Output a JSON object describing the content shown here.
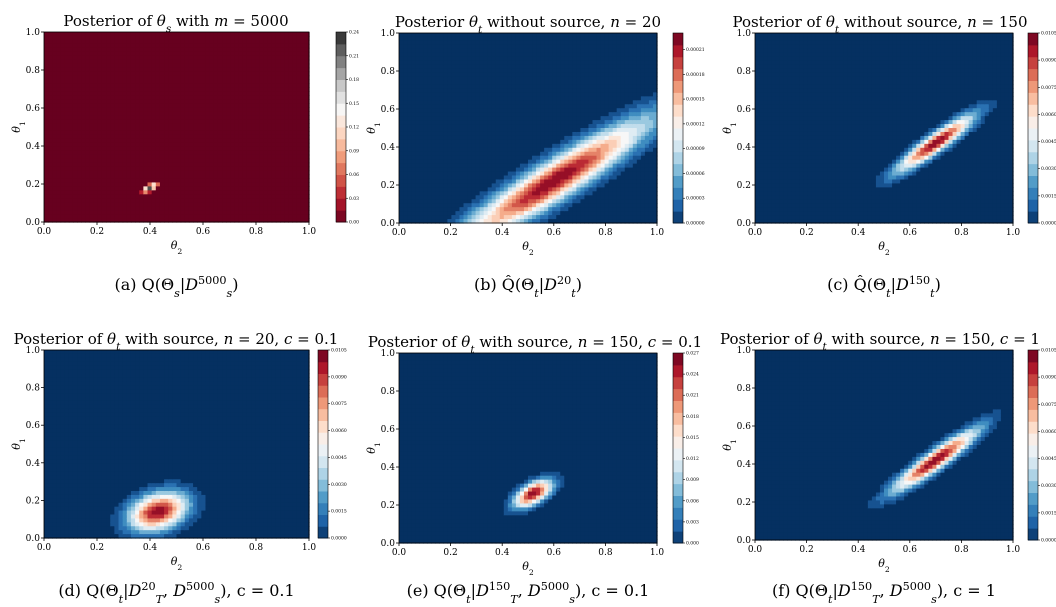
{
  "chart_data": [
    {
      "type": "heatmap",
      "title": "Posterior of θs with m = 5000",
      "xlabel": "θ2",
      "ylabel": "θ1",
      "xlim": [
        0,
        1
      ],
      "ylim": [
        0,
        1
      ],
      "xticks": [
        "0.0",
        "0.2",
        "0.4",
        "0.6",
        "0.8",
        "1.0"
      ],
      "yticks": [
        "0.0",
        "0.2",
        "0.4",
        "0.6",
        "0.8",
        "1.0"
      ],
      "colorbar_ticks": [
        "0.00",
        "0.03",
        "0.06",
        "0.09",
        "0.12",
        "0.15",
        "0.18",
        "0.21",
        "0.24"
      ],
      "colorbar_max": 0.24,
      "colormap": "reversed RdBu with dark gray top",
      "peak": {
        "theta2": 0.4,
        "theta1": 0.18,
        "sd2": 0.018,
        "sd1": 0.016,
        "corr": 0.7
      },
      "caption": "(a) Q(Θs|D_s^5000)"
    },
    {
      "type": "heatmap",
      "title": "Posterior θt without source, n = 20",
      "xlabel": "θ2",
      "ylabel": "θ1",
      "xlim": [
        0,
        1
      ],
      "ylim": [
        0,
        1
      ],
      "xticks": [
        "0.0",
        "0.2",
        "0.4",
        "0.6",
        "0.8",
        "1.0"
      ],
      "yticks": [
        "0.0",
        "0.2",
        "0.4",
        "0.6",
        "0.8",
        "1.0"
      ],
      "colorbar_ticks": [
        "0.00000",
        "0.00003",
        "0.00006",
        "0.00009",
        "0.00012",
        "0.00015",
        "0.00018",
        "0.00021"
      ],
      "colorbar_max": 0.00023,
      "colormap": "RdBu reversed",
      "peak": {
        "theta2": 0.6,
        "theta1": 0.22,
        "sd2": 0.25,
        "sd1": 0.22,
        "corr": 0.93
      },
      "caption": "(b) Q̂(Θt|D_t^20)"
    },
    {
      "type": "heatmap",
      "title": "Posterior of θt without source, n = 150",
      "xlabel": "θ2",
      "ylabel": "θ1",
      "xlim": [
        0,
        1
      ],
      "ylim": [
        0,
        1
      ],
      "xticks": [
        "0.0",
        "0.2",
        "0.4",
        "0.6",
        "0.8",
        "1.0"
      ],
      "yticks": [
        "0.0",
        "0.2",
        "0.4",
        "0.6",
        "0.8",
        "1.0"
      ],
      "colorbar_ticks": [
        "0.0000",
        "0.0015",
        "0.0030",
        "0.0045",
        "0.0060",
        "0.0075",
        "0.0090",
        "0.0105"
      ],
      "colorbar_max": 0.0105,
      "colormap": "RdBu reversed",
      "peak": {
        "theta2": 0.7,
        "theta1": 0.42,
        "sd2": 0.1,
        "sd1": 0.1,
        "corr": 0.92
      },
      "caption": "(c) Q̂(Θt|D_t^150)"
    },
    {
      "type": "heatmap",
      "title": "Posterior of θt with source, n = 20, c = 0.1",
      "xlabel": "θ2",
      "ylabel": "θ1",
      "xlim": [
        0,
        1
      ],
      "ylim": [
        0,
        1
      ],
      "xticks": [
        "0.0",
        "0.2",
        "0.4",
        "0.6",
        "0.8",
        "1.0"
      ],
      "yticks": [
        "0.0",
        "0.2",
        "0.4",
        "0.6",
        "0.8",
        "1.0"
      ],
      "colorbar_ticks": [
        "0.0000",
        "0.0015",
        "0.0030",
        "0.0045",
        "0.0060",
        "0.0075",
        "0.0090",
        "0.0105"
      ],
      "colorbar_max": 0.0105,
      "colormap": "RdBu reversed",
      "peak": {
        "theta2": 0.43,
        "theta1": 0.14,
        "sd2": 0.075,
        "sd1": 0.07,
        "corr": 0.3
      },
      "caption": "(d) Q(Θt|D_T^20, D_s^5000), c = 0.1"
    },
    {
      "type": "heatmap",
      "title": "Posterior of θt with source, n = 150, c = 0.1",
      "xlabel": "θ2",
      "ylabel": "θ1",
      "xlim": [
        0,
        1
      ],
      "ylim": [
        0,
        1
      ],
      "xticks": [
        "0.0",
        "0.2",
        "0.4",
        "0.6",
        "0.8",
        "1.0"
      ],
      "yticks": [
        "0.0",
        "0.2",
        "0.4",
        "0.6",
        "0.8",
        "1.0"
      ],
      "colorbar_ticks": [
        "0.000",
        "0.003",
        "0.006",
        "0.009",
        "0.012",
        "0.015",
        "0.018",
        "0.021",
        "0.024",
        "0.027"
      ],
      "colorbar_max": 0.027,
      "colormap": "RdBu reversed",
      "peak": {
        "theta2": 0.52,
        "theta1": 0.26,
        "sd2": 0.05,
        "sd1": 0.05,
        "corr": 0.6
      },
      "caption": "(e) Q(Θt|D_T^150, D_s^5000), c = 0.1"
    },
    {
      "type": "heatmap",
      "title": "Posterior of θt with source, n = 150, c = 1",
      "xlabel": "θ2",
      "ylabel": "θ1",
      "xlim": [
        0,
        1
      ],
      "ylim": [
        0,
        1
      ],
      "xticks": [
        "0.0",
        "0.2",
        "0.4",
        "0.6",
        "0.8",
        "1.0"
      ],
      "yticks": [
        "0.0",
        "0.2",
        "0.4",
        "0.6",
        "0.8",
        "1.0"
      ],
      "colorbar_ticks": [
        "0.0000",
        "0.0015",
        "0.0030",
        "0.0045",
        "0.0060",
        "0.0075",
        "0.0090",
        "0.0105"
      ],
      "colorbar_max": 0.0105,
      "colormap": "RdBu reversed",
      "peak": {
        "theta2": 0.7,
        "theta1": 0.42,
        "sd2": 0.11,
        "sd1": 0.11,
        "corr": 0.93
      },
      "caption": "(f) Q(Θt|D_T^150, D_s^5000), c = 1"
    }
  ]
}
